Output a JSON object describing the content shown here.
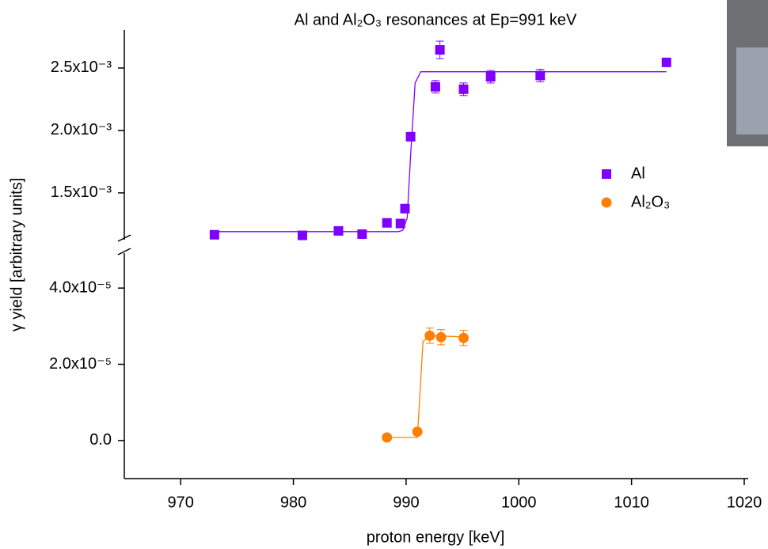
{
  "chart_data": {
    "type": "scatter",
    "title": "Al and Al₂O₃ resonances at Ep=991 keV",
    "x_label": "proton energy [keV]",
    "y_label": "γ yield [arbitrary units]",
    "xlim": [
      965,
      1020
    ],
    "xticks": [
      970,
      980,
      990,
      1000,
      1010,
      1020
    ],
    "legend": "right",
    "panels": [
      {
        "ylim": [
          0.0011,
          0.0028
        ],
        "yticks": [
          {
            "value": 0.0015,
            "label": "1.5x10⁻³"
          },
          {
            "value": 0.002,
            "label": "2.0x10⁻³"
          },
          {
            "value": 0.0025,
            "label": "2.5x10⁻³"
          }
        ],
        "series": [
          {
            "name": "Al",
            "color": "#8000ff",
            "marker": "square",
            "x": [
              973.0,
              980.8,
              984.0,
              986.1,
              988.3,
              989.5,
              989.9,
              990.4,
              992.6,
              993.0,
              995.1,
              997.5,
              1001.9,
              1013.1
            ],
            "values": [
              0.001165,
              0.00116,
              0.001196,
              0.00117,
              0.00126,
              0.001255,
              0.001374,
              0.00195,
              0.00235,
              0.002645,
              0.00233,
              0.00243,
              0.00244,
              0.002545
            ],
            "errors": [
              1e-05,
              1e-05,
              2e-05,
              1e-05,
              1e-05,
              2e-05,
              3e-05,
              2e-05,
              5e-05,
              7e-05,
              5e-05,
              5e-05,
              5e-05,
              3e-05
            ]
          }
        ],
        "fit": {
          "color": "#8000ff",
          "x": [
            973.0,
            989.3,
            989.7,
            990.1,
            990.4,
            990.8,
            991.3,
            1013.1
          ],
          "values": [
            0.00119,
            0.00119,
            0.0012,
            0.0013,
            0.0018,
            0.00238,
            0.00247,
            0.00247
          ]
        }
      },
      {
        "ylim": [
          -1e-05,
          5e-05
        ],
        "yticks": [
          {
            "value": 0,
            "label": "0.0"
          },
          {
            "value": 2e-05,
            "label": "2.0x10⁻⁵"
          },
          {
            "value": 4e-05,
            "label": "4.0x10⁻⁵"
          }
        ],
        "series": [
          {
            "name": "Al₂O₃",
            "color": "#ff8000",
            "marker": "circle",
            "x": [
              988.3,
              991.0,
              992.1,
              993.1,
              995.1
            ],
            "values": [
              8e-07,
              2.3e-06,
              2.75e-05,
              2.71e-05,
              2.69e-05
            ],
            "errors": [
              3e-07,
              3e-07,
              2e-06,
              2e-06,
              2e-06
            ]
          }
        ],
        "fit": {
          "color": "#ff8000",
          "x": [
            988.3,
            991.0,
            991.5,
            992.1,
            995.1
          ],
          "values": [
            8e-07,
            8e-07,
            2.6e-05,
            2.75e-05,
            2.72e-05
          ]
        }
      }
    ]
  }
}
